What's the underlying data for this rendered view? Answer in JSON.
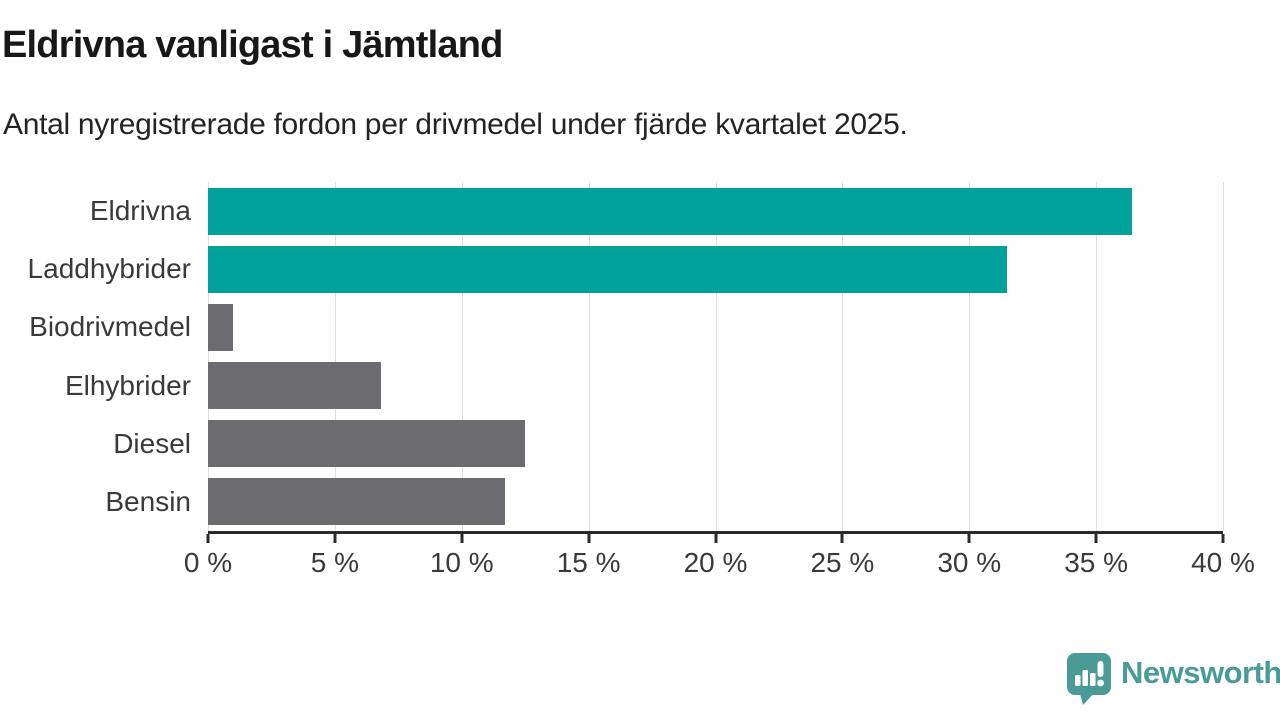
{
  "header": {
    "title": "Eldrivna vanligast i Jämtland",
    "subtitle": "Antal nyregistrerade fordon per drivmedel under fjärde kvartalet 2025."
  },
  "chart_data": {
    "type": "bar",
    "orientation": "horizontal",
    "title": "Eldrivna vanligast i Jämtland",
    "subtitle": "Antal nyregistrerade fordon per drivmedel under fjärde kvartalet 2025.",
    "categories": [
      "Eldrivna",
      "Laddhybrider",
      "Biodrivmedel",
      "Elhybrider",
      "Diesel",
      "Bensin"
    ],
    "values": [
      36.4,
      31.5,
      1.0,
      6.8,
      12.5,
      11.7
    ],
    "value_unit": "%",
    "bar_colors": [
      "#00A29B",
      "#00A29B",
      "#6B6B70",
      "#6B6B70",
      "#6B6B70",
      "#6B6B70"
    ],
    "highlight_color": "#00A29B",
    "base_color": "#6B6B70",
    "xlim": [
      0,
      40
    ],
    "x_ticks": [
      0,
      5,
      10,
      15,
      20,
      25,
      30,
      35,
      40
    ],
    "x_tick_labels": [
      "0 %",
      "5 %",
      "10 %",
      "15 %",
      "20 %",
      "25 %",
      "30 %",
      "35 %",
      "40 %"
    ],
    "grid": true,
    "legend": "none"
  },
  "branding": {
    "brand": "Newsworthy",
    "brand_color": "#4A9B98",
    "logo_icon": "bar-chart-speech-bubble-icon"
  }
}
